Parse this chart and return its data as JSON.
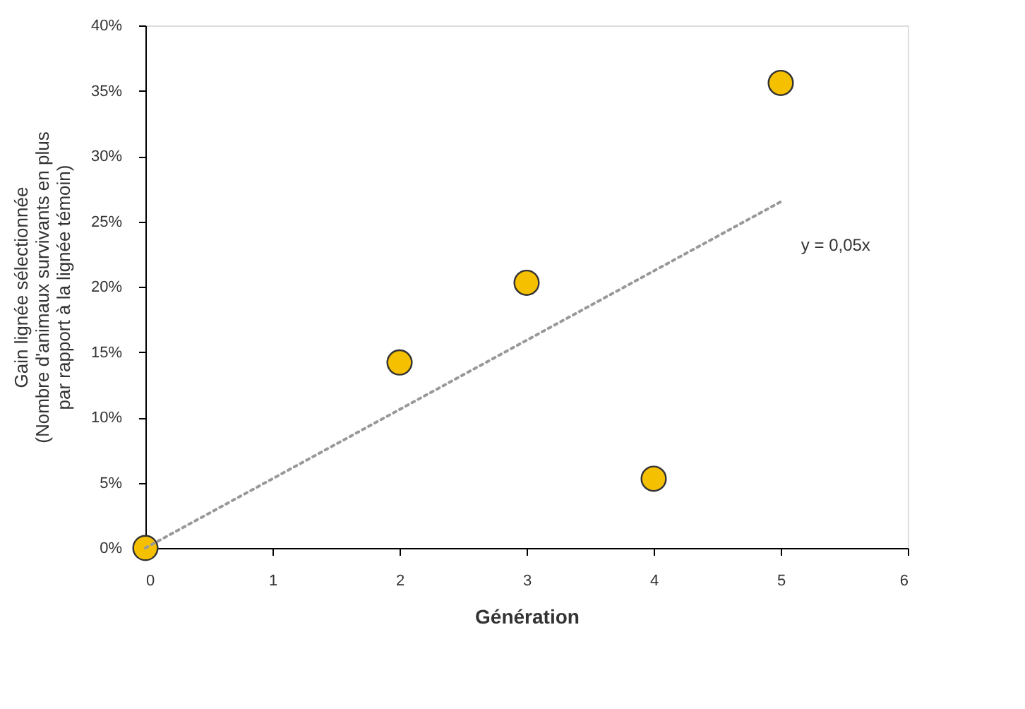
{
  "chart_data": {
    "type": "scatter",
    "xlabel": "Génération",
    "ylabel": [
      "Gain lignée sélectionnée",
      "(Nombre d'animaux survivants en plus",
      "par rapport à la lignée témoin)"
    ],
    "x": [
      0,
      2,
      3,
      4,
      5
    ],
    "series": [
      {
        "color": "#f5c000",
        "values": [
          0,
          14.2,
          20.3,
          5.3,
          35.6
        ]
      },
      {
        "type": "line",
        "color": "#999999",
        "line_style": "dotted",
        "marker": "none",
        "x": [
          0,
          5
        ],
        "values": [
          0,
          26.5
        ]
      }
    ],
    "marker": "circle",
    "xlim": [
      0,
      6
    ],
    "xticks": [
      0,
      1,
      2,
      3,
      4,
      5,
      6
    ],
    "ylim": [
      0,
      40
    ],
    "yticks": [
      {
        "value": 0,
        "label": "0%"
      },
      {
        "value": 5,
        "label": "5%"
      },
      {
        "value": 10,
        "label": "10%"
      },
      {
        "value": 15,
        "label": "15%"
      },
      {
        "value": 20,
        "label": "20%"
      },
      {
        "value": 25,
        "label": "25%"
      },
      {
        "value": 30,
        "label": "30%"
      },
      {
        "value": 35,
        "label": "35%"
      },
      {
        "value": 40,
        "label": "40%"
      }
    ],
    "annotations": [
      "y = 0,05x"
    ],
    "grid": false,
    "legend": false
  }
}
